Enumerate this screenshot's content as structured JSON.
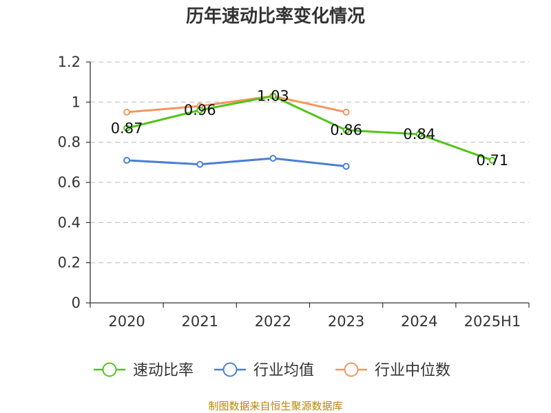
{
  "chart_data": {
    "type": "line",
    "title": "历年速动比率变化情况",
    "categories": [
      "2020",
      "2021",
      "2022",
      "2023",
      "2024",
      "2025H1"
    ],
    "y_ticks": [
      "0",
      "0.2",
      "0.4",
      "0.6",
      "0.8",
      "1",
      "1.2"
    ],
    "ylim": [
      0,
      1.2
    ],
    "grid": true,
    "legend_position": "bottom",
    "series": [
      {
        "name": "速动比率",
        "color": "#52c41a",
        "values": [
          0.87,
          0.96,
          1.03,
          0.86,
          0.84,
          0.71
        ],
        "labels": [
          "0.87",
          "0.96",
          "1.03",
          "0.86",
          "0.84",
          "0.71"
        ]
      },
      {
        "name": "行业均值",
        "color": "#4a7fd6",
        "values": [
          0.71,
          0.69,
          0.72,
          0.68,
          null,
          null
        ]
      },
      {
        "name": "行业中位数",
        "color": "#f7955b",
        "values": [
          0.95,
          0.98,
          1.03,
          0.95,
          null,
          null
        ]
      }
    ],
    "source": "制图数据来自恒生聚源数据库"
  }
}
